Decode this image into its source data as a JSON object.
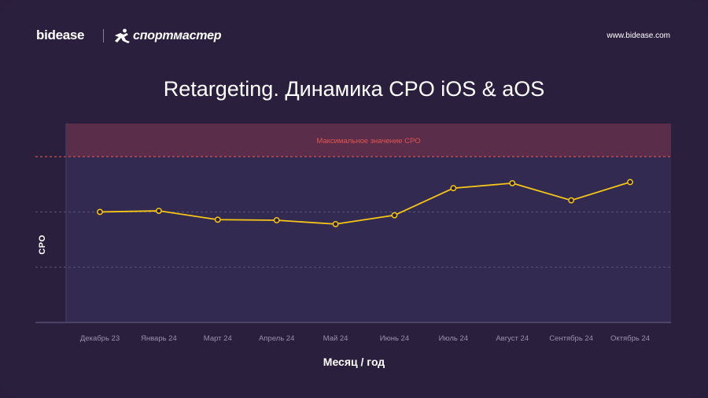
{
  "header": {
    "brand": "bidease",
    "partner": "спортмастер",
    "website": "www.bidease.com"
  },
  "colors": {
    "background": "#2b1f3e",
    "line": "#f5c518",
    "max_line": "#e0554f",
    "max_band": "#5a2d4a",
    "plot_area": "#322a50"
  },
  "icons": [
    "runner-logo-icon"
  ],
  "chart_data": {
    "type": "line",
    "title": "Retargeting. Динамика CPO iOS & aOS",
    "xlabel": "Месяц / год",
    "ylabel": "CPO",
    "categories": [
      "Декабрь 23",
      "Январь 24",
      "Март 24",
      "Апрель 24",
      "Май 24",
      "Июнь 24",
      "Июль 24",
      "Август 24",
      "Сентябрь 24",
      "Октябрь 24"
    ],
    "values": [
      2.0,
      2.02,
      1.86,
      1.85,
      1.78,
      1.94,
      2.43,
      2.52,
      2.21,
      2.54
    ],
    "ylim": [
      0,
      3.6
    ],
    "max_value": 3.0,
    "max_label": "Максимальное значение CPO",
    "grid": true,
    "legend": "none"
  }
}
